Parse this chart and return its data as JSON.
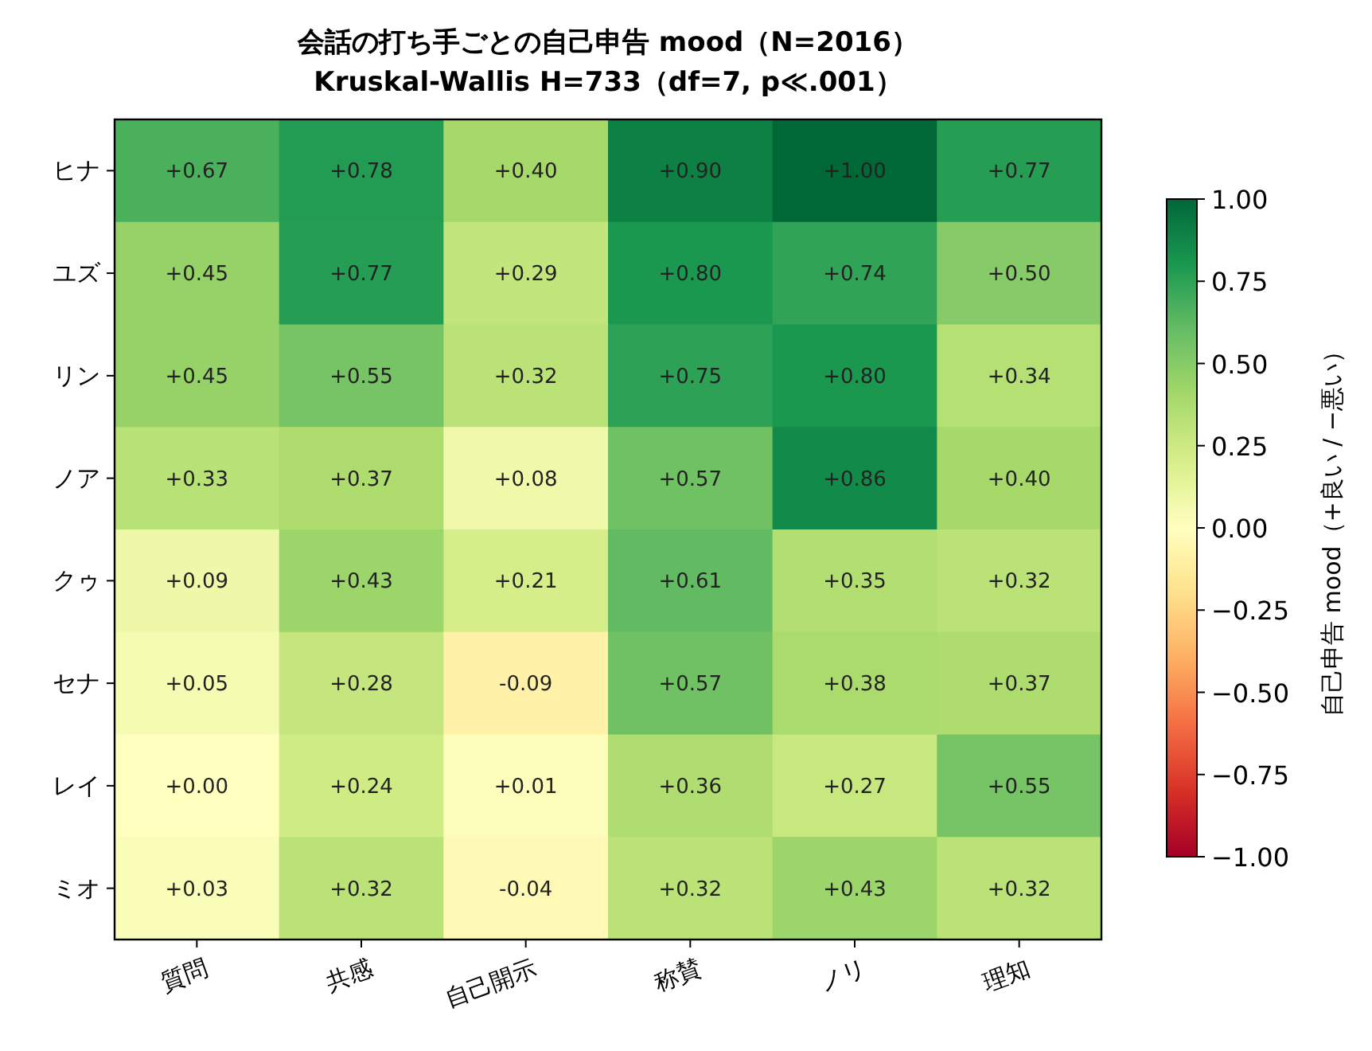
{
  "chart_data": {
    "type": "heatmap",
    "title": "会話の打ち手ごとの自己申告 mood（N=2016）",
    "subtitle": "Kruskal-Wallis H=733（df=7, p≪.001）",
    "clabel": "自己申告 mood（+良い / −悪い）",
    "categories": [
      "質問",
      "共感",
      "自己開示",
      "称賛",
      "ノリ",
      "理知"
    ],
    "y_categories": [
      "ヒナ",
      "ユズ",
      "リン",
      "ノア",
      "クゥ",
      "セナ",
      "レイ",
      "ミオ"
    ],
    "cells": [
      [
        0.67,
        0.78,
        0.4,
        0.9,
        1.0,
        0.77
      ],
      [
        0.45,
        0.77,
        0.29,
        0.8,
        0.74,
        0.5
      ],
      [
        0.45,
        0.55,
        0.32,
        0.75,
        0.8,
        0.34
      ],
      [
        0.33,
        0.37,
        0.08,
        0.57,
        0.86,
        0.4
      ],
      [
        0.09,
        0.43,
        0.21,
        0.61,
        0.35,
        0.32
      ],
      [
        0.05,
        0.28,
        -0.09,
        0.57,
        0.38,
        0.37
      ],
      [
        0.0,
        0.24,
        0.01,
        0.36,
        0.27,
        0.55
      ],
      [
        0.03,
        0.32,
        -0.04,
        0.32,
        0.43,
        0.32
      ]
    ],
    "cell_labels": [
      [
        "+0.67",
        "+0.78",
        "+0.40",
        "+0.90",
        "+1.00",
        "+0.77"
      ],
      [
        "+0.45",
        "+0.77",
        "+0.29",
        "+0.80",
        "+0.74",
        "+0.50"
      ],
      [
        "+0.45",
        "+0.55",
        "+0.32",
        "+0.75",
        "+0.80",
        "+0.34"
      ],
      [
        "+0.33",
        "+0.37",
        "+0.08",
        "+0.57",
        "+0.86",
        "+0.40"
      ],
      [
        "+0.09",
        "+0.43",
        "+0.21",
        "+0.61",
        "+0.35",
        "+0.32"
      ],
      [
        "+0.05",
        "+0.28",
        "-0.09",
        "+0.57",
        "+0.38",
        "+0.37"
      ],
      [
        "+0.00",
        "+0.24",
        "+0.01",
        "+0.36",
        "+0.27",
        "+0.55"
      ],
      [
        "+0.03",
        "+0.32",
        "-0.04",
        "+0.32",
        "+0.43",
        "+0.32"
      ]
    ],
    "data_labels": true,
    "clim": [
      -1,
      1
    ],
    "cticks": [
      {
        "value": -1,
        "label": "−1.00"
      },
      {
        "value": -0.75,
        "label": "−0.75"
      },
      {
        "value": -0.5,
        "label": "−0.50"
      },
      {
        "value": -0.25,
        "label": "−0.25"
      },
      {
        "value": 0,
        "label": "0.00"
      },
      {
        "value": 0.25,
        "label": "0.25"
      },
      {
        "value": 0.5,
        "label": "0.50"
      },
      {
        "value": 0.75,
        "label": "0.75"
      },
      {
        "value": 1,
        "label": "1.00"
      }
    ]
  }
}
